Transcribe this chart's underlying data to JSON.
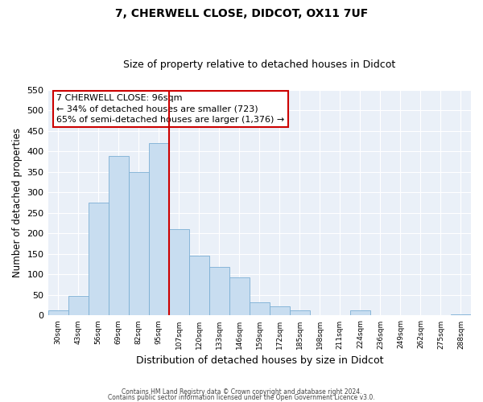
{
  "title": "7, CHERWELL CLOSE, DIDCOT, OX11 7UF",
  "subtitle": "Size of property relative to detached houses in Didcot",
  "xlabel": "Distribution of detached houses by size in Didcot",
  "ylabel": "Number of detached properties",
  "categories": [
    "30sqm",
    "43sqm",
    "56sqm",
    "69sqm",
    "82sqm",
    "95sqm",
    "107sqm",
    "120sqm",
    "133sqm",
    "146sqm",
    "159sqm",
    "172sqm",
    "185sqm",
    "198sqm",
    "211sqm",
    "224sqm",
    "236sqm",
    "249sqm",
    "262sqm",
    "275sqm",
    "288sqm"
  ],
  "values": [
    12,
    48,
    275,
    388,
    350,
    420,
    210,
    145,
    118,
    92,
    32,
    22,
    12,
    0,
    0,
    12,
    0,
    0,
    0,
    0,
    2
  ],
  "bar_color": "#c8ddf0",
  "bar_edge_color": "#7bafd4",
  "vline_color": "#cc0000",
  "annotation_text": "7 CHERWELL CLOSE: 96sqm\n← 34% of detached houses are smaller (723)\n65% of semi-detached houses are larger (1,376) →",
  "annotation_box_color": "white",
  "annotation_box_edge": "#cc0000",
  "ylim": [
    0,
    550
  ],
  "yticks": [
    0,
    50,
    100,
    150,
    200,
    250,
    300,
    350,
    400,
    450,
    500,
    550
  ],
  "footer1": "Contains HM Land Registry data © Crown copyright and database right 2024.",
  "footer2": "Contains public sector information licensed under the Open Government Licence v3.0.",
  "bg_color": "#eaf0f8",
  "grid_color": "#ffffff",
  "title_fontsize": 10,
  "subtitle_fontsize": 9
}
